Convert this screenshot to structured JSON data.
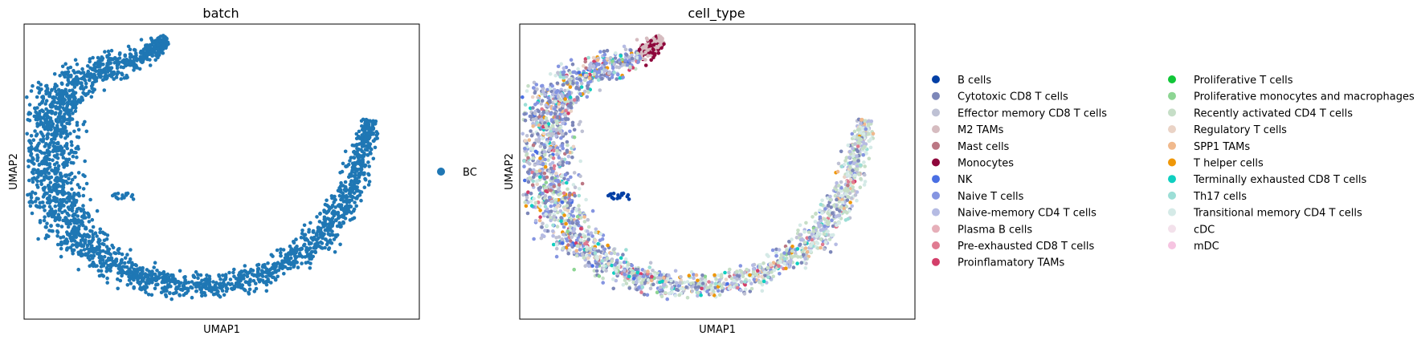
{
  "chart_data": [
    {
      "type": "scatter",
      "title": "batch",
      "xlabel": "UMAP1",
      "ylabel": "UMAP2",
      "xticks": [],
      "yticks": [],
      "grid": false,
      "legend": {
        "placement": "right",
        "columns": 1,
        "entries": [
          {
            "name": "BC",
            "color": "#1f77b4"
          }
        ]
      }
    },
    {
      "type": "scatter",
      "title": "cell_type",
      "xlabel": "UMAP1",
      "ylabel": "UMAP2",
      "xticks": [],
      "yticks": [],
      "grid": false,
      "legend": {
        "placement": "right",
        "columns": 2,
        "entries": [
          {
            "name": "B cells",
            "color": "#023fa5"
          },
          {
            "name": "Cytotoxic CD8 T cells",
            "color": "#7d87b9"
          },
          {
            "name": "Effector memory CD8 T cells",
            "color": "#bec1d4"
          },
          {
            "name": "M2 TAMs",
            "color": "#d6bcc0"
          },
          {
            "name": "Mast cells",
            "color": "#bb7784"
          },
          {
            "name": "Monocytes",
            "color": "#8e063b"
          },
          {
            "name": "NK",
            "color": "#4a6fe3"
          },
          {
            "name": "Naive T cells",
            "color": "#8595e1"
          },
          {
            "name": "Naive-memory CD4 T cells",
            "color": "#b5bbe3"
          },
          {
            "name": "Plasma B cells",
            "color": "#e6afb9"
          },
          {
            "name": "Pre-exhausted CD8 T cells",
            "color": "#e07b91"
          },
          {
            "name": "Proinflamatory TAMs",
            "color": "#d33f6a"
          },
          {
            "name": "Proliferative T cells",
            "color": "#11c638"
          },
          {
            "name": "Proliferative monocytes and macrophages",
            "color": "#8dd593"
          },
          {
            "name": "Recently activated CD4 T cells",
            "color": "#c6dec7"
          },
          {
            "name": "Regulatory T cells",
            "color": "#ead3c6"
          },
          {
            "name": "SPP1 TAMs",
            "color": "#f0b98d"
          },
          {
            "name": "T helper cells",
            "color": "#ef9708"
          },
          {
            "name": "Terminally exhausted CD8 T cells",
            "color": "#0fcfc0"
          },
          {
            "name": "Th17 cells",
            "color": "#9cded6"
          },
          {
            "name": "Transitional memory CD4 T cells",
            "color": "#d5eae7"
          },
          {
            "name": "cDC",
            "color": "#f3e1eb"
          },
          {
            "name": "mDC",
            "color": "#f6c4e1"
          }
        ]
      }
    }
  ]
}
